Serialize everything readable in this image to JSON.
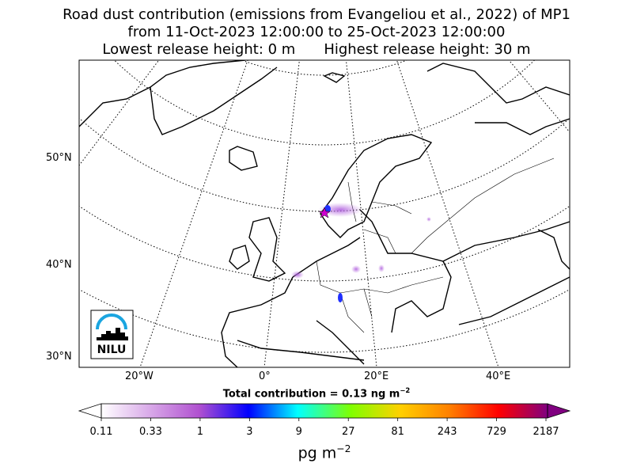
{
  "title": {
    "line1": "Road dust contribution (emissions from Evangeliou et al., 2022) of MP1",
    "line2": "from 11-Oct-2023 12:00:00 to 25-Oct-2023 12:00:00",
    "line3_left": "Lowest release height: 0 m",
    "line3_right": "Highest release height: 30 m"
  },
  "map": {
    "lat_labels": [
      "50°N",
      "40°N",
      "30°N"
    ],
    "lon_labels": [
      "20°W",
      "0°",
      "20°E",
      "40°E"
    ],
    "logo_text": "NILU",
    "release_marker": "star-icon",
    "colors": {
      "marker": "#cc00cc",
      "plume_light": "#c080e0",
      "plume_dense": "#2020ff"
    }
  },
  "colorbar": {
    "total_text": "Total contribution = 0.13 ng m",
    "total_exp": "−2",
    "ticks": [
      "0.11",
      "0.33",
      "1",
      "3",
      "9",
      "27",
      "81",
      "243",
      "729",
      "2187"
    ],
    "units": "pg m",
    "units_exp": "−2",
    "colors": [
      "#ffffff",
      "#d8a8e8",
      "#b050d0",
      "#0000ff",
      "#00ffff",
      "#80ff00",
      "#ffd000",
      "#ff8000",
      "#ff0000",
      "#800080"
    ]
  }
}
